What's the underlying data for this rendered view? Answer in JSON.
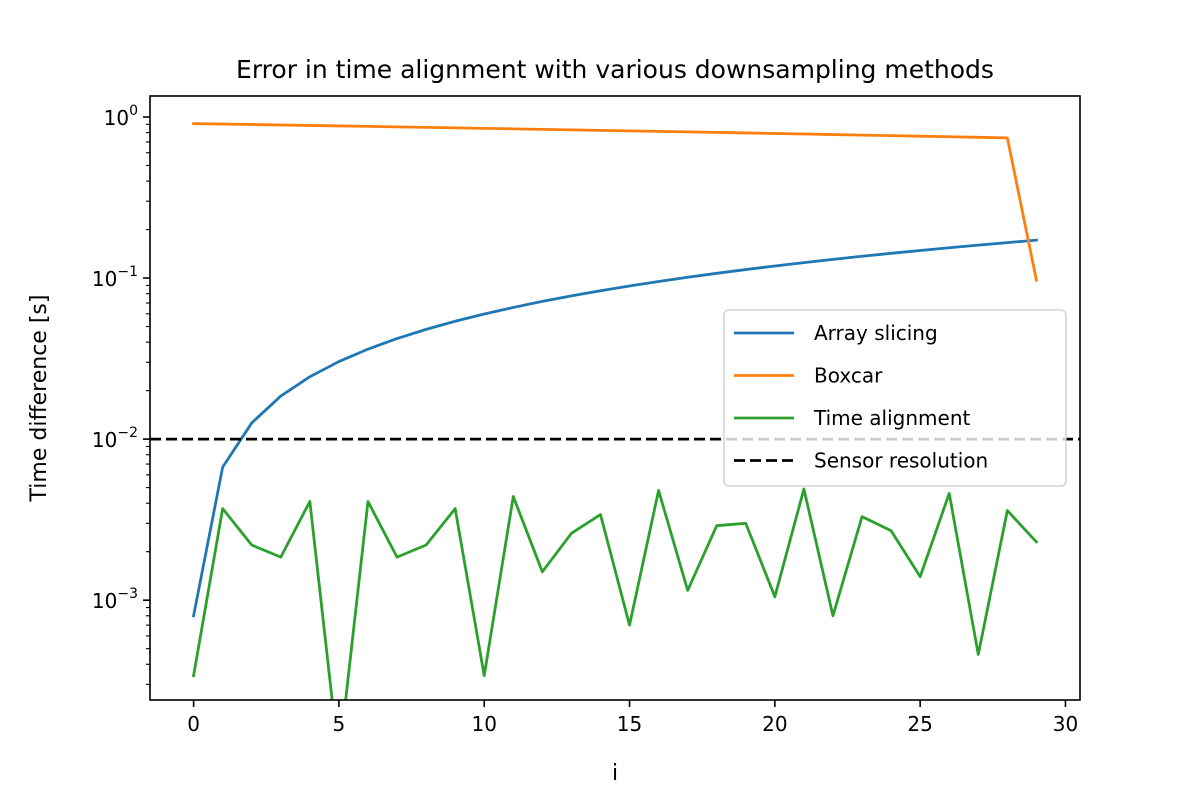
{
  "chart_data": {
    "type": "line",
    "title": "Error in time alignment with various downsampling methods",
    "xlabel": "i",
    "ylabel": "Time difference [s]",
    "xlim": [
      -1.5,
      30.5
    ],
    "ylim": [
      0.00024,
      1.35
    ],
    "yscale": "log",
    "grid": false,
    "legend_position": "center-right",
    "x_ticks": [
      0,
      5,
      10,
      15,
      20,
      25,
      30
    ],
    "y_ticks": [
      {
        "value": 0.001,
        "base": "10",
        "exp": "−3"
      },
      {
        "value": 0.01,
        "base": "10",
        "exp": "−2"
      },
      {
        "value": 0.1,
        "base": "10",
        "exp": "−1"
      },
      {
        "value": 1,
        "base": "10",
        "exp": "0"
      }
    ],
    "series": [
      {
        "name": "Array slicing",
        "color": "#1f77b4",
        "style": "solid",
        "x": [
          0,
          1,
          2,
          3,
          4,
          5,
          6,
          7,
          8,
          9,
          10,
          11,
          12,
          13,
          14,
          15,
          16,
          17,
          18,
          19,
          20,
          21,
          22,
          23,
          24,
          25,
          26,
          27,
          28,
          29
        ],
        "y": [
          0.0008,
          0.0067,
          0.0126,
          0.0185,
          0.0244,
          0.0303,
          0.0362,
          0.0421,
          0.048,
          0.0539,
          0.0598,
          0.0657,
          0.0716,
          0.0775,
          0.0834,
          0.0893,
          0.0952,
          0.1011,
          0.107,
          0.1129,
          0.1188,
          0.1247,
          0.1306,
          0.1365,
          0.1424,
          0.1483,
          0.1542,
          0.1601,
          0.166,
          0.172
        ]
      },
      {
        "name": "Boxcar",
        "color": "#ff7f0e",
        "style": "solid",
        "x": [
          0,
          1,
          2,
          3,
          4,
          5,
          6,
          7,
          8,
          9,
          10,
          11,
          12,
          13,
          14,
          15,
          16,
          17,
          18,
          19,
          20,
          21,
          22,
          23,
          24,
          25,
          26,
          27,
          28,
          29
        ],
        "y": [
          0.91,
          0.904,
          0.898,
          0.892,
          0.886,
          0.88,
          0.874,
          0.868,
          0.862,
          0.856,
          0.85,
          0.844,
          0.838,
          0.832,
          0.826,
          0.82,
          0.814,
          0.808,
          0.802,
          0.796,
          0.79,
          0.784,
          0.778,
          0.772,
          0.766,
          0.76,
          0.754,
          0.748,
          0.742,
          0.097
        ]
      },
      {
        "name": "Time alignment",
        "color": "#2ca02c",
        "style": "solid",
        "x": [
          0,
          1,
          2,
          3,
          4,
          5,
          6,
          7,
          8,
          9,
          10,
          11,
          12,
          13,
          14,
          15,
          16,
          17,
          18,
          19,
          20,
          21,
          22,
          23,
          24,
          25,
          26,
          27,
          28,
          29
        ],
        "y": [
          0.00034,
          0.0037,
          0.0022,
          0.00185,
          0.0041,
          0,
          0.0041,
          0.00185,
          0.0022,
          0.0037,
          0.00034,
          0.0044,
          0.0015,
          0.0026,
          0.0034,
          0.0007,
          0.0048,
          0.00115,
          0.0029,
          0.003,
          0.00105,
          0.0049,
          0.0008,
          0.0033,
          0.0027,
          0.0014,
          0.0046,
          0.00046,
          0.0036,
          0.0023
        ]
      },
      {
        "name": "Sensor resolution",
        "color": "#000000",
        "style": "dashed",
        "hline": 0.01
      }
    ]
  }
}
